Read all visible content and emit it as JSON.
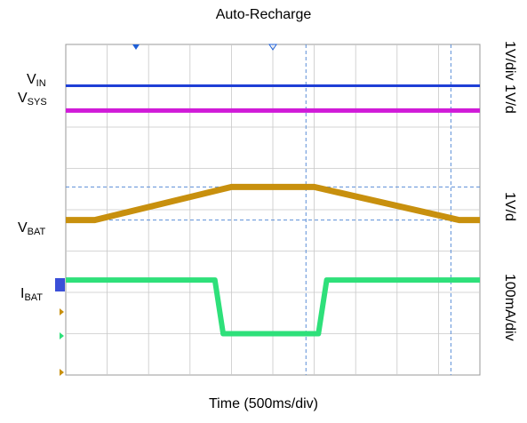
{
  "title": "Auto-Recharge",
  "xlabel": "Time (500ms/div)",
  "signals": {
    "vin": {
      "main": "V",
      "sub": "IN"
    },
    "vsys": {
      "main": "V",
      "sub": "SYS"
    },
    "vbat": {
      "main": "V",
      "sub": "BAT"
    },
    "ibat": {
      "main": "I",
      "sub": "BAT"
    }
  },
  "scales": {
    "top": "1V/div 1V/d",
    "mid": "1V/d",
    "bottom": "100mA/div"
  },
  "colors": {
    "vin": "#1f3fd6",
    "vsys": "#d01ad8",
    "vbat": "#c8900e",
    "ibat": "#2ee07a",
    "grid": "#c8c8c8",
    "cursor": "#5b8ed8"
  },
  "chart_data": {
    "type": "line",
    "title": "Auto-Recharge",
    "xlabel": "Time (500ms/div)",
    "x_divisions": 10,
    "y_divisions": 8,
    "series": [
      {
        "name": "VIN",
        "x": [
          0,
          10
        ],
        "y": [
          7.0,
          7.0
        ]
      },
      {
        "name": "VSYS",
        "x": [
          0,
          10
        ],
        "y": [
          6.4,
          6.4
        ]
      },
      {
        "name": "VBAT",
        "x": [
          0,
          0.7,
          4.0,
          6.0,
          9.5,
          10
        ],
        "y": [
          3.75,
          3.75,
          4.55,
          4.55,
          3.75,
          3.75
        ]
      },
      {
        "name": "IBAT",
        "x": [
          0,
          3.6,
          3.8,
          6.1,
          6.3,
          10
        ],
        "y": [
          2.3,
          2.3,
          1.0,
          1.0,
          2.3,
          2.3
        ]
      }
    ]
  }
}
